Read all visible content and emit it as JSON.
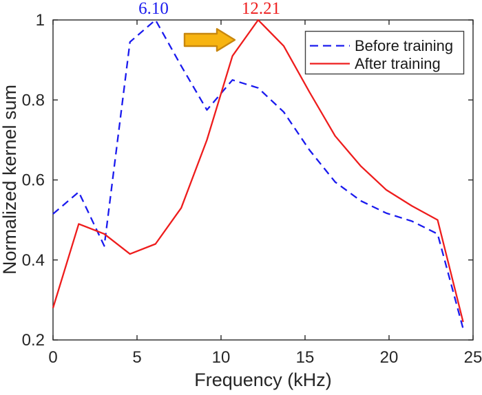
{
  "figure": {
    "background": "#ffffff",
    "axis_color": "#262626",
    "legend_border_color": "#404040"
  },
  "chart_data": {
    "type": "line",
    "title": "",
    "xlabel": "Frequency (kHz)",
    "ylabel": "Normalized kernel sum",
    "xlim": [
      0,
      25
    ],
    "ylim": [
      0.2,
      1.0
    ],
    "grid": false,
    "legend_position": "top-right",
    "xticks": {
      "values": [
        0,
        5,
        10,
        15,
        20,
        25
      ],
      "labels": [
        "0",
        "5",
        "10",
        "15",
        "20",
        "25"
      ]
    },
    "yticks": {
      "values": [
        0.2,
        0.4,
        0.6,
        0.8,
        1.0
      ],
      "labels": [
        "0.2",
        "0.4",
        "0.6",
        "0.8",
        "1"
      ]
    },
    "x": [
      0,
      1.53,
      3.05,
      4.58,
      6.1,
      7.63,
      9.16,
      10.68,
      12.21,
      13.73,
      15.26,
      16.79,
      18.31,
      19.84,
      21.36,
      22.89,
      24.41
    ],
    "series": [
      {
        "name": "Before training",
        "color": "#1a1aee",
        "style": "dashed",
        "values": [
          0.515,
          0.57,
          0.435,
          0.945,
          1.0,
          0.885,
          0.775,
          0.85,
          0.83,
          0.77,
          0.675,
          0.595,
          0.548,
          0.517,
          0.497,
          0.465,
          0.228
        ]
      },
      {
        "name": "After training",
        "color": "#ee1c1c",
        "style": "solid",
        "values": [
          0.28,
          0.49,
          0.465,
          0.415,
          0.44,
          0.53,
          0.7,
          0.91,
          1.0,
          0.935,
          0.82,
          0.71,
          0.635,
          0.575,
          0.535,
          0.5,
          0.245
        ]
      }
    ],
    "annotations": [
      {
        "text": "6.10",
        "color": "#1a1aee",
        "x": 6.1,
        "y": 1.0
      },
      {
        "text": "12.21",
        "color": "#ee1c1c",
        "x": 12.21,
        "y": 1.0
      }
    ],
    "arrow": {
      "shape": "block-arrow-right",
      "fill": "#f7b411",
      "stroke": "#c8870e"
    }
  }
}
